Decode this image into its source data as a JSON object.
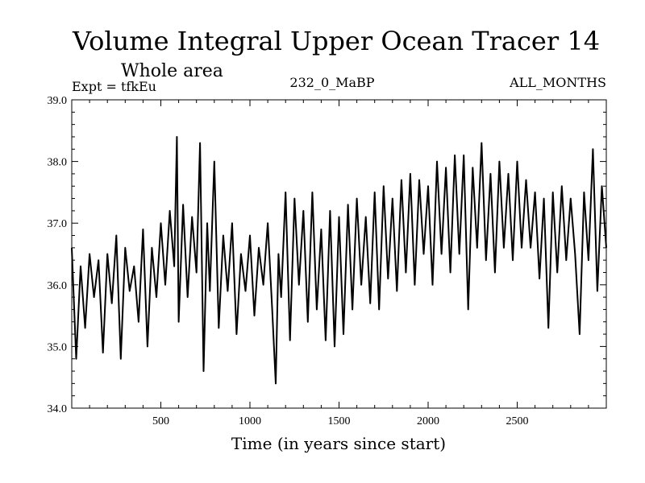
{
  "chart_data": {
    "type": "line",
    "title": "Volume Integral Upper Ocean Tracer 14",
    "subtitle": "Whole area",
    "experiment_label": "Expt = tfkEu",
    "period_label": "232_0_MaBP",
    "months_label": "ALL_MONTHS",
    "xlabel": "Time (in years since start)",
    "ylabel": "",
    "xlim": [
      0,
      3000
    ],
    "ylim": [
      34.0,
      39.0
    ],
    "x_ticks": [
      500,
      1000,
      1500,
      2000,
      2500
    ],
    "x_tick_labels": [
      "500",
      "1000",
      "1500",
      "2000",
      "2500"
    ],
    "y_ticks": [
      34.0,
      35.0,
      36.0,
      37.0,
      38.0,
      39.0
    ],
    "y_tick_labels": [
      "34.0",
      "35.0",
      "36.0",
      "37.0",
      "38.0",
      "39.0"
    ],
    "grid": false,
    "line_color": "#000000",
    "series": [
      {
        "x": [
          0,
          25,
          50,
          75,
          100,
          125,
          150,
          175,
          200,
          225,
          250,
          275,
          300,
          325,
          350,
          375,
          400,
          425,
          450,
          475,
          500,
          525,
          550,
          575,
          590,
          600,
          625,
          650,
          675,
          700,
          720,
          740,
          760,
          775,
          800,
          825,
          850,
          875,
          900,
          925,
          950,
          975,
          1000,
          1025,
          1050,
          1075,
          1100,
          1125,
          1145,
          1160,
          1175,
          1200,
          1225,
          1250,
          1275,
          1300,
          1325,
          1350,
          1375,
          1400,
          1425,
          1450,
          1475,
          1500,
          1525,
          1550,
          1575,
          1600,
          1625,
          1650,
          1675,
          1700,
          1725,
          1750,
          1775,
          1800,
          1825,
          1850,
          1875,
          1900,
          1925,
          1950,
          1975,
          2000,
          2025,
          2050,
          2075,
          2100,
          2125,
          2150,
          2175,
          2200,
          2225,
          2250,
          2275,
          2300,
          2325,
          2350,
          2375,
          2400,
          2425,
          2450,
          2475,
          2500,
          2525,
          2550,
          2575,
          2600,
          2625,
          2650,
          2675,
          2700,
          2725,
          2750,
          2775,
          2800,
          2825,
          2850,
          2875,
          2900,
          2925,
          2950,
          2975,
          3000
        ],
        "y": [
          36.6,
          34.8,
          36.3,
          35.3,
          36.5,
          35.8,
          36.4,
          34.9,
          36.5,
          35.7,
          36.8,
          34.8,
          36.6,
          35.9,
          36.3,
          35.4,
          36.9,
          35.0,
          36.6,
          35.8,
          37.0,
          36.0,
          37.2,
          36.3,
          38.4,
          35.4,
          37.3,
          35.8,
          37.1,
          36.2,
          38.3,
          34.6,
          37.0,
          35.9,
          38.0,
          35.3,
          36.8,
          35.9,
          37.0,
          35.2,
          36.5,
          35.9,
          36.8,
          35.5,
          36.6,
          36.0,
          37.0,
          35.6,
          34.4,
          36.5,
          35.8,
          37.5,
          35.1,
          37.4,
          36.0,
          37.2,
          35.4,
          37.5,
          35.6,
          36.9,
          35.1,
          37.2,
          35.0,
          37.1,
          35.2,
          37.3,
          35.6,
          37.4,
          36.0,
          37.1,
          35.7,
          37.5,
          35.6,
          37.6,
          36.1,
          37.4,
          35.9,
          37.7,
          36.2,
          37.8,
          36.0,
          37.7,
          36.5,
          37.6,
          36.0,
          38.0,
          36.5,
          37.9,
          36.2,
          38.1,
          36.5,
          38.1,
          35.6,
          37.9,
          36.6,
          38.3,
          36.4,
          37.8,
          36.2,
          38.0,
          36.6,
          37.8,
          36.4,
          38.0,
          36.6,
          37.7,
          36.6,
          37.5,
          36.1,
          37.4,
          35.3,
          37.5,
          36.2,
          37.6,
          36.4,
          37.4,
          36.5,
          35.2,
          37.5,
          36.4,
          38.2,
          35.9,
          37.6,
          36.6
        ]
      }
    ]
  }
}
